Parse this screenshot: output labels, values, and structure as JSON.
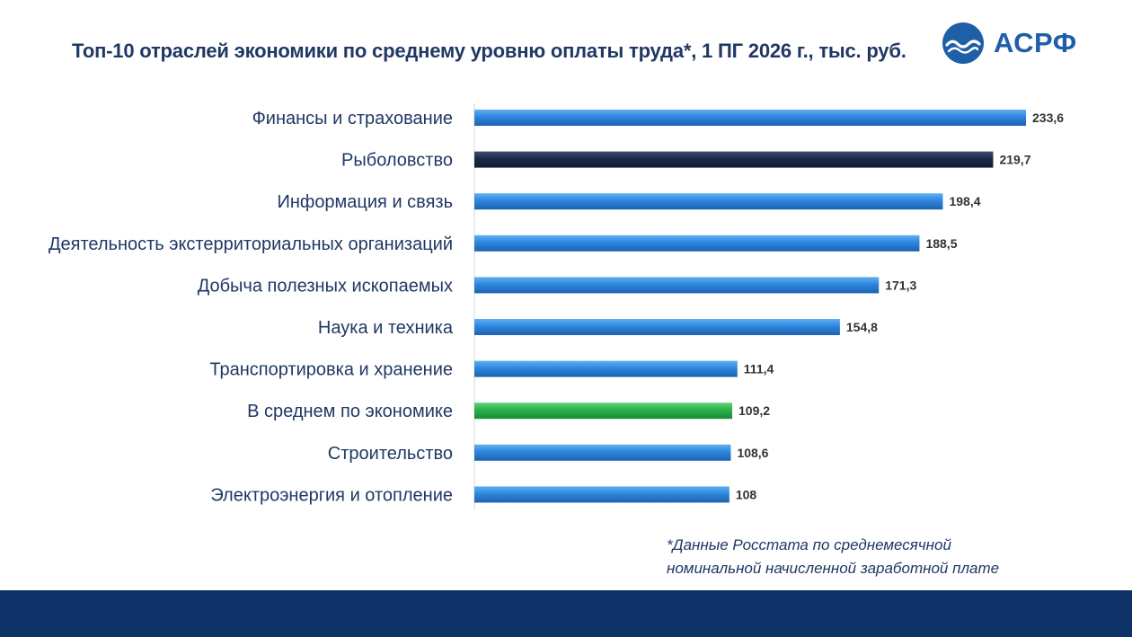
{
  "title": "Топ-10 отраслей экономики по среднему уровню оплаты труда*, 1 ПГ 2026 г., тыс. руб.",
  "logo": {
    "text": "АСРФ",
    "icon": "wave-circle-icon"
  },
  "footnote": {
    "line1": "*Данные Росстата по среднемесячной",
    "line2": "номинальной начисленной заработной плате"
  },
  "colors": {
    "default_bar": "#2e86de",
    "highlight_bar": "#1c2a4a",
    "average_bar": "#2bb04a",
    "label_text": "#1f3864",
    "value_text": "#333333",
    "footer_band": "#0f3268"
  },
  "chart_data": {
    "type": "bar",
    "orientation": "horizontal",
    "categories": [
      "Финансы и страхование",
      "Рыболовство",
      "Информация и связь",
      "Деятельность экстерриториальных организаций",
      "Добыча полезных ископаемых",
      "Наука и техника",
      "Транспортировка и хранение",
      "В среднем по экономике",
      "Строительство",
      "Электроэнергия и отопление"
    ],
    "values": [
      233.6,
      219.7,
      198.4,
      188.5,
      171.3,
      154.8,
      111.4,
      109.2,
      108.6,
      108
    ],
    "value_labels": [
      "233,6",
      "219,7",
      "198,4",
      "188,5",
      "171,3",
      "154,8",
      "111,4",
      "109,2",
      "108,6",
      "108"
    ],
    "bar_colors": [
      "default",
      "highlight",
      "default",
      "default",
      "default",
      "default",
      "default",
      "average",
      "default",
      "default"
    ],
    "xlim": [
      0,
      233.6
    ],
    "grid": false,
    "legend": "none",
    "title": "Топ-10 отраслей экономики по среднему уровню оплаты труда*, 1 ПГ 2026 г., тыс. руб.",
    "xlabel": "",
    "ylabel": ""
  }
}
